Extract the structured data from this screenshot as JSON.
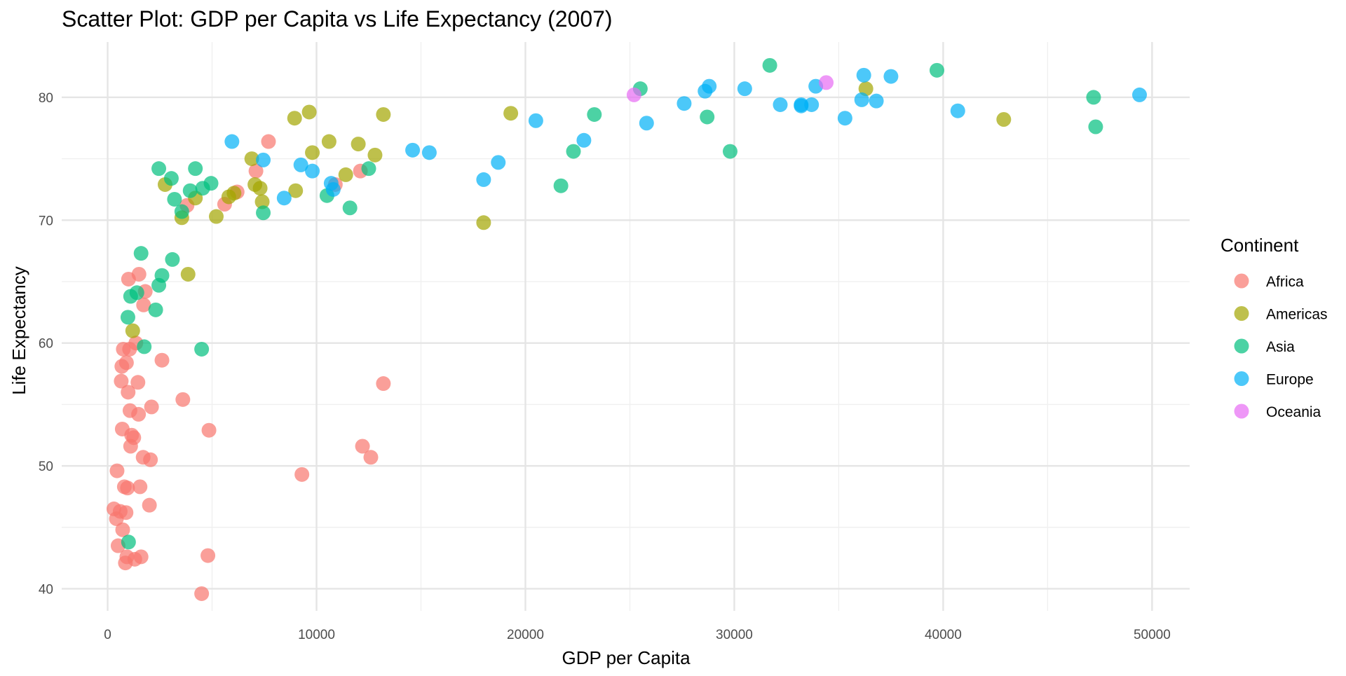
{
  "chart_data": {
    "type": "scatter",
    "title": "Scatter Plot: GDP per Capita vs Life Expectancy (2007)",
    "xlabel": "GDP per Capita",
    "ylabel": "Life Expectancy",
    "xlim": [
      -2200,
      51800
    ],
    "ylim": [
      38.2,
      84.5
    ],
    "x_ticks": [
      0,
      10000,
      20000,
      30000,
      40000,
      50000
    ],
    "x_tick_labels": [
      "0",
      "10000",
      "20000",
      "30000",
      "40000",
      "50000"
    ],
    "y_ticks": [
      40,
      50,
      60,
      70,
      80
    ],
    "y_tick_labels": [
      "40",
      "50",
      "60",
      "70",
      "80"
    ],
    "grid": true,
    "legend": {
      "title": "Continent",
      "placement": "right"
    },
    "series": [
      {
        "name": "Africa",
        "color": "#F8766D",
        "points": [
          [
            300,
            46.5
          ],
          [
            420,
            45.7
          ],
          [
            450,
            49.6
          ],
          [
            500,
            43.5
          ],
          [
            600,
            46.3
          ],
          [
            650,
            56.9
          ],
          [
            680,
            58.1
          ],
          [
            700,
            53.0
          ],
          [
            720,
            44.8
          ],
          [
            750,
            59.5
          ],
          [
            800,
            48.3
          ],
          [
            850,
            42.1
          ],
          [
            880,
            46.2
          ],
          [
            900,
            58.4
          ],
          [
            920,
            42.6
          ],
          [
            950,
            48.2
          ],
          [
            980,
            56.0
          ],
          [
            1000,
            65.2
          ],
          [
            1050,
            59.5
          ],
          [
            1070,
            54.5
          ],
          [
            1100,
            51.6
          ],
          [
            1150,
            52.5
          ],
          [
            1250,
            52.3
          ],
          [
            1300,
            42.4
          ],
          [
            1350,
            60.0
          ],
          [
            1450,
            56.8
          ],
          [
            1480,
            54.2
          ],
          [
            1500,
            65.6
          ],
          [
            1550,
            48.3
          ],
          [
            1600,
            42.6
          ],
          [
            1700,
            50.7
          ],
          [
            1720,
            63.1
          ],
          [
            1800,
            64.2
          ],
          [
            2000,
            46.8
          ],
          [
            2050,
            50.5
          ],
          [
            2100,
            54.8
          ],
          [
            2600,
            58.6
          ],
          [
            3600,
            55.4
          ],
          [
            3800,
            71.2
          ],
          [
            4500,
            39.6
          ],
          [
            4800,
            42.7
          ],
          [
            4850,
            52.9
          ],
          [
            5600,
            71.3
          ],
          [
            6200,
            72.3
          ],
          [
            7100,
            74.0
          ],
          [
            7700,
            76.4
          ],
          [
            9300,
            49.3
          ],
          [
            10900,
            72.9
          ],
          [
            12100,
            74.0
          ],
          [
            12200,
            51.6
          ],
          [
            12600,
            50.7
          ],
          [
            13200,
            56.7
          ]
        ]
      },
      {
        "name": "Americas",
        "color": "#A3A500",
        "points": [
          [
            1200,
            61.0
          ],
          [
            2750,
            72.9
          ],
          [
            3550,
            70.2
          ],
          [
            3850,
            65.6
          ],
          [
            4200,
            71.8
          ],
          [
            5200,
            70.3
          ],
          [
            5800,
            71.9
          ],
          [
            6050,
            72.2
          ],
          [
            6900,
            75.0
          ],
          [
            7050,
            72.9
          ],
          [
            7300,
            72.6
          ],
          [
            7400,
            71.5
          ],
          [
            9000,
            72.4
          ],
          [
            8950,
            78.3
          ],
          [
            9650,
            78.8
          ],
          [
            9800,
            75.5
          ],
          [
            10600,
            76.4
          ],
          [
            11400,
            73.7
          ],
          [
            12000,
            76.2
          ],
          [
            12800,
            75.3
          ],
          [
            13200,
            78.6
          ],
          [
            18000,
            69.8
          ],
          [
            19300,
            78.7
          ],
          [
            36300,
            80.7
          ],
          [
            42900,
            78.2
          ]
        ]
      },
      {
        "name": "Asia",
        "color": "#00BF7D",
        "points": [
          [
            970,
            62.1
          ],
          [
            1000,
            43.8
          ],
          [
            1100,
            63.8
          ],
          [
            1400,
            64.1
          ],
          [
            1600,
            67.3
          ],
          [
            1750,
            59.7
          ],
          [
            2300,
            62.7
          ],
          [
            2450,
            64.7
          ],
          [
            2450,
            74.2
          ],
          [
            2600,
            65.5
          ],
          [
            3050,
            73.4
          ],
          [
            3100,
            66.8
          ],
          [
            3200,
            71.7
          ],
          [
            3550,
            70.7
          ],
          [
            3950,
            72.4
          ],
          [
            4200,
            74.2
          ],
          [
            4550,
            72.6
          ],
          [
            4500,
            59.5
          ],
          [
            4950,
            73.0
          ],
          [
            7450,
            70.6
          ],
          [
            10500,
            72.0
          ],
          [
            11600,
            71.0
          ],
          [
            12500,
            74.2
          ],
          [
            21700,
            72.8
          ],
          [
            22300,
            75.6
          ],
          [
            23300,
            78.6
          ],
          [
            25500,
            80.7
          ],
          [
            28700,
            78.4
          ],
          [
            29800,
            75.6
          ],
          [
            31700,
            82.6
          ],
          [
            39700,
            82.2
          ],
          [
            47200,
            80.0
          ],
          [
            47300,
            77.6
          ]
        ]
      },
      {
        "name": "Europe",
        "color": "#00B0F6",
        "points": [
          [
            5950,
            76.4
          ],
          [
            7450,
            74.9
          ],
          [
            8450,
            71.8
          ],
          [
            9250,
            74.5
          ],
          [
            9800,
            74.0
          ],
          [
            10700,
            73.0
          ],
          [
            10800,
            72.5
          ],
          [
            14600,
            75.7
          ],
          [
            15400,
            75.5
          ],
          [
            18000,
            73.3
          ],
          [
            18700,
            74.7
          ],
          [
            20500,
            78.1
          ],
          [
            22800,
            76.5
          ],
          [
            25800,
            77.9
          ],
          [
            27600,
            79.5
          ],
          [
            28600,
            80.5
          ],
          [
            28800,
            80.9
          ],
          [
            30500,
            80.7
          ],
          [
            32200,
            79.4
          ],
          [
            33200,
            79.3
          ],
          [
            33200,
            79.4
          ],
          [
            33700,
            79.4
          ],
          [
            33900,
            80.9
          ],
          [
            35300,
            78.3
          ],
          [
            36100,
            79.8
          ],
          [
            36200,
            81.8
          ],
          [
            36800,
            79.7
          ],
          [
            37500,
            81.7
          ],
          [
            40700,
            78.9
          ],
          [
            49400,
            80.2
          ]
        ]
      },
      {
        "name": "Oceania",
        "color": "#E76BF3",
        "points": [
          [
            25200,
            80.2
          ],
          [
            34400,
            81.2
          ]
        ]
      }
    ]
  }
}
